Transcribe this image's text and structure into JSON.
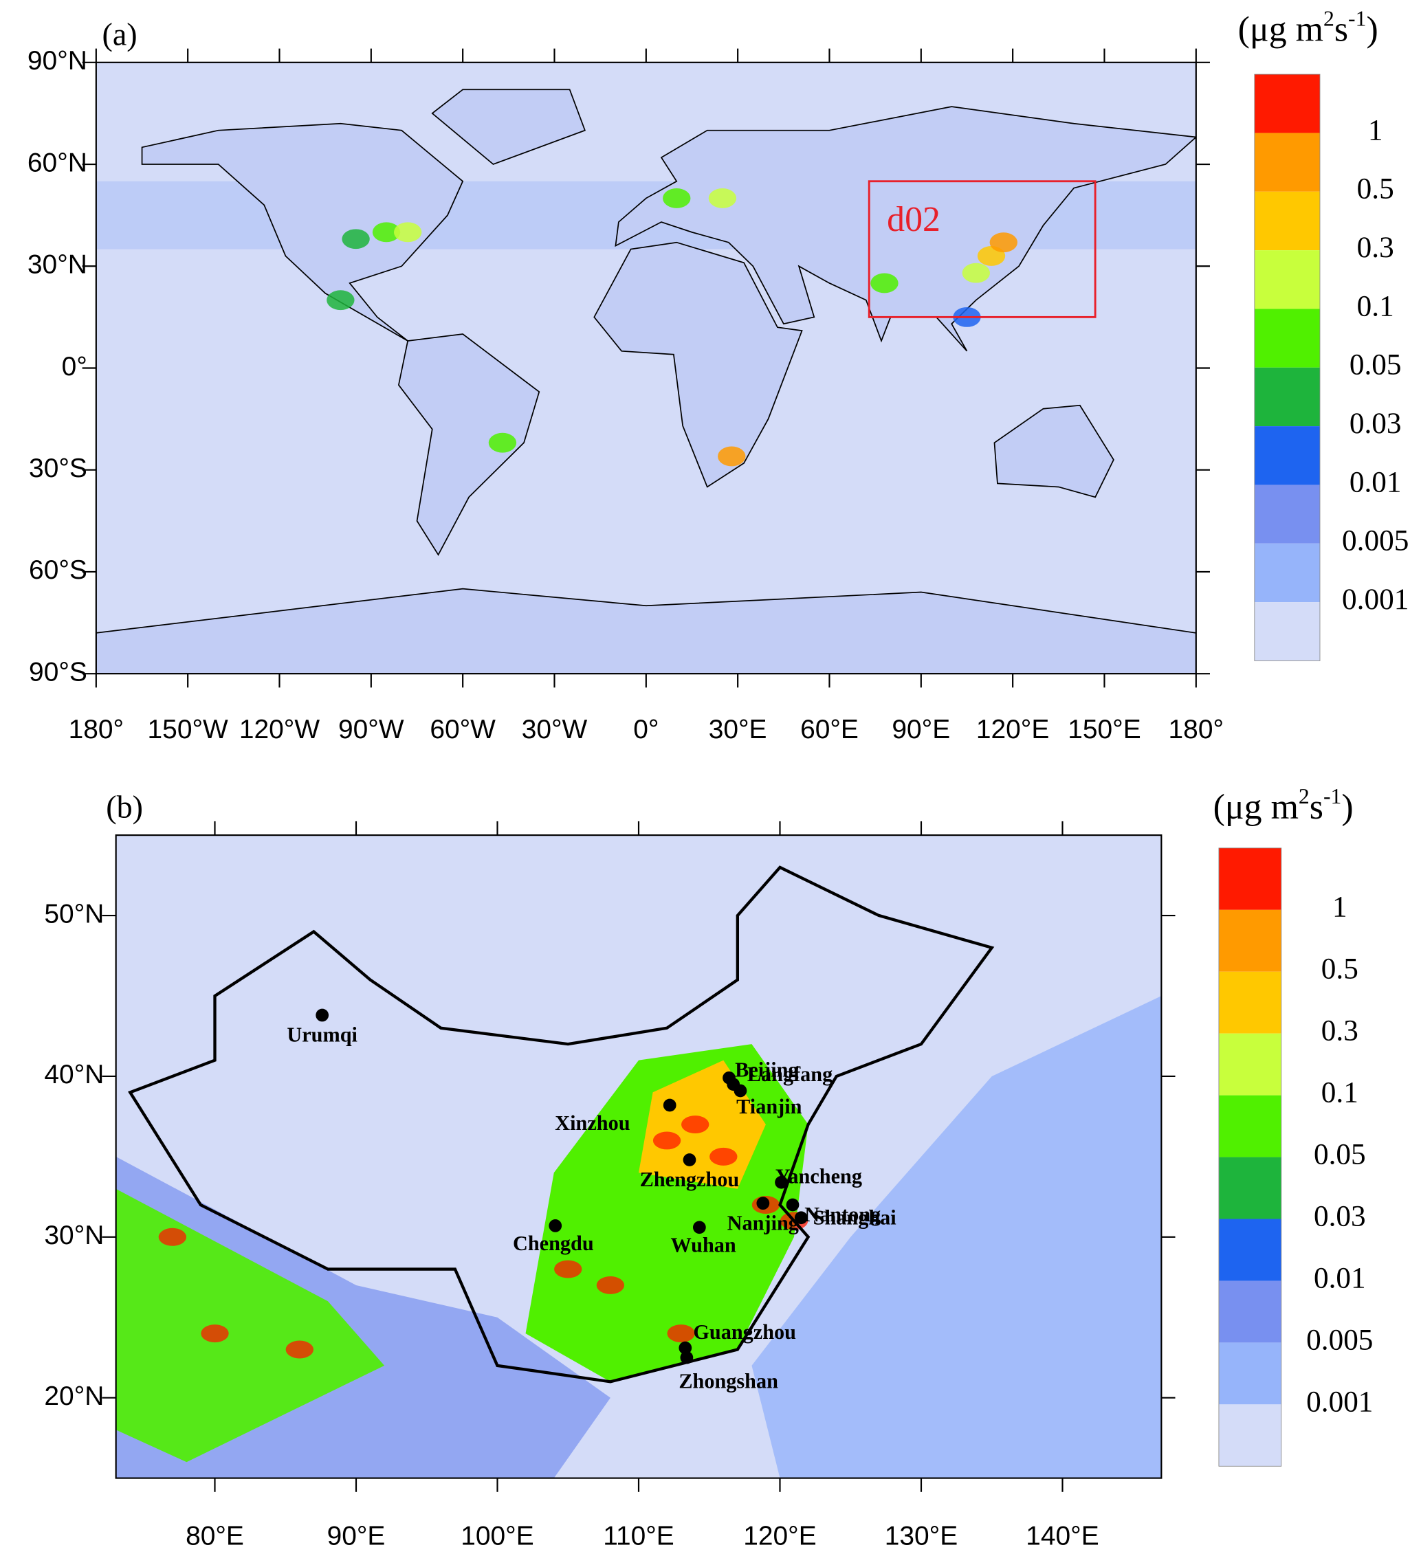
{
  "unit": {
    "base": "(μg m",
    "exp1": "2",
    "mid": "s",
    "exp2": "-1",
    "close": ")"
  },
  "colorbar": {
    "colors": [
      "#ff1a00",
      "#ff9a00",
      "#ffc800",
      "#c8ff3c",
      "#50f000",
      "#1eb43c",
      "#1e64f0",
      "#7890f0",
      "#96b4fa",
      "#d4dcf8"
    ],
    "levels": [
      1,
      0.5,
      0.3,
      0.1,
      0.05,
      0.03,
      0.01,
      0.005,
      0.001
    ]
  },
  "panel_a": {
    "label": "(a)",
    "lonlim": [
      -180,
      180
    ],
    "latlim": [
      -90,
      90
    ],
    "latticks": [
      {
        "value": 90,
        "label": "90°N"
      },
      {
        "value": 60,
        "label": "60°N"
      },
      {
        "value": 30,
        "label": "30°N"
      },
      {
        "value": 0,
        "label": "0°"
      },
      {
        "value": -30,
        "label": "30°S"
      },
      {
        "value": -60,
        "label": "60°S"
      },
      {
        "value": -90,
        "label": "90°S"
      }
    ],
    "lonticks": [
      {
        "value": -180,
        "label": "180°"
      },
      {
        "value": -150,
        "label": "150°W"
      },
      {
        "value": -120,
        "label": "120°W"
      },
      {
        "value": -90,
        "label": "90°W"
      },
      {
        "value": -60,
        "label": "60°W"
      },
      {
        "value": -30,
        "label": "30°W"
      },
      {
        "value": 0,
        "label": "0°"
      },
      {
        "value": 30,
        "label": "30°E"
      },
      {
        "value": 60,
        "label": "60°E"
      },
      {
        "value": 90,
        "label": "90°E"
      },
      {
        "value": 120,
        "label": "120°E"
      },
      {
        "value": 150,
        "label": "150°E"
      },
      {
        "value": 180,
        "label": "180°"
      }
    ],
    "d02_box": {
      "label": "d02",
      "lon": [
        73,
        147
      ],
      "lat": [
        15,
        55
      ],
      "color": "#e8202a"
    }
  },
  "panel_b": {
    "label": "(b)",
    "lonlim": [
      73,
      147
    ],
    "latlim": [
      15,
      55
    ],
    "latticks": [
      {
        "value": 20,
        "label": "20°N"
      },
      {
        "value": 30,
        "label": "30°N"
      },
      {
        "value": 40,
        "label": "40°N"
      },
      {
        "value": 50,
        "label": "50°N"
      }
    ],
    "lonticks": [
      {
        "value": 80,
        "label": "80°E"
      },
      {
        "value": 90,
        "label": "90°E"
      },
      {
        "value": 100,
        "label": "100°E"
      },
      {
        "value": 110,
        "label": "110°E"
      },
      {
        "value": 120,
        "label": "120°E"
      },
      {
        "value": 130,
        "label": "130°E"
      },
      {
        "value": 140,
        "label": "140°E"
      }
    ],
    "cities": [
      {
        "name": "Urumqi",
        "lon": 87.6,
        "lat": 43.8
      },
      {
        "name": "Beijing",
        "lon": 116.4,
        "lat": 39.9
      },
      {
        "name": "Langfang",
        "lon": 116.7,
        "lat": 39.5
      },
      {
        "name": "Tianjin",
        "lon": 117.2,
        "lat": 39.1
      },
      {
        "name": "Xinzhou",
        "lon": 112.2,
        "lat": 38.2
      },
      {
        "name": "Zhengzhou",
        "lon": 113.6,
        "lat": 34.8
      },
      {
        "name": "Yancheng",
        "lon": 120.1,
        "lat": 33.4
      },
      {
        "name": "Nanjing",
        "lon": 118.8,
        "lat": 32.1
      },
      {
        "name": "Nantong",
        "lon": 120.9,
        "lat": 32.0
      },
      {
        "name": "Shanghai",
        "lon": 121.5,
        "lat": 31.2
      },
      {
        "name": "Chengdu",
        "lon": 104.1,
        "lat": 30.7
      },
      {
        "name": "Wuhan",
        "lon": 114.3,
        "lat": 30.6
      },
      {
        "name": "Guangzhou",
        "lon": 113.3,
        "lat": 23.1
      },
      {
        "name": "Zhongshan",
        "lon": 113.4,
        "lat": 22.5
      }
    ]
  }
}
